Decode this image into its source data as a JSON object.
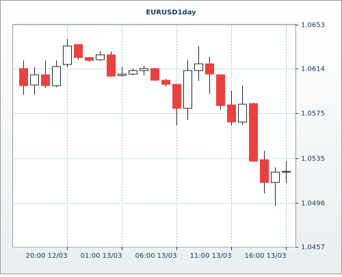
{
  "chart_data": {
    "type": "candlestick",
    "title": "EURUSD1day",
    "categories": [
      null,
      null,
      null,
      null,
      "20:00 12/03",
      null,
      null,
      null,
      null,
      "01:00 13/03",
      null,
      null,
      null,
      null,
      "06:00 13/03",
      null,
      null,
      null,
      null,
      "11:00 13/03",
      null,
      null,
      null,
      null,
      "16:00 13/03"
    ],
    "open": [
      1.06143,
      1.05998,
      1.06088,
      1.05992,
      1.06179,
      1.06355,
      1.0624,
      1.06221,
      1.06264,
      1.06082,
      1.06094,
      1.06125,
      1.06143,
      1.0604,
      1.06004,
      1.05792,
      1.06125,
      1.06185,
      1.06088,
      1.05822,
      1.05671,
      1.05834,
      1.05338,
      1.05138,
      1.05235
    ],
    "high": [
      1.06215,
      1.06155,
      1.06215,
      1.06215,
      1.06403,
      1.06355,
      1.06246,
      1.06294,
      1.06294,
      1.06155,
      1.06143,
      1.06167,
      1.06149,
      1.06052,
      1.06004,
      1.06221,
      1.06342,
      1.06246,
      1.06088,
      1.05949,
      1.05992,
      1.0584,
      1.05417,
      1.05272,
      1.05326
    ],
    "low": [
      1.05913,
      1.05913,
      1.05973,
      1.05979,
      1.06155,
      1.06221,
      1.06203,
      1.06209,
      1.0607,
      1.0607,
      1.06082,
      1.06082,
      1.06034,
      1.05985,
      1.05641,
      1.05689,
      1.06034,
      1.05919,
      1.0578,
      1.05641,
      1.05647,
      1.0532,
      1.05042,
      1.04932,
      1.05132
    ],
    "close": [
      1.05992,
      1.06088,
      1.05992,
      1.06161,
      1.06342,
      1.0624,
      1.06215,
      1.06264,
      1.06076,
      1.06094,
      1.06125,
      1.06143,
      1.0604,
      1.06004,
      1.05792,
      1.06125,
      1.06185,
      1.06094,
      1.05816,
      1.05671,
      1.05828,
      1.05326,
      1.05138,
      1.05229,
      1.05235
    ],
    "up_color": "#ffffff",
    "down_color": "#e8413f",
    "ylim": [
      1.0457,
      1.0653
    ],
    "yticks": [
      1.0457,
      1.0496,
      1.0535,
      1.0575,
      1.0614,
      1.0653
    ],
    "grid": true
  }
}
